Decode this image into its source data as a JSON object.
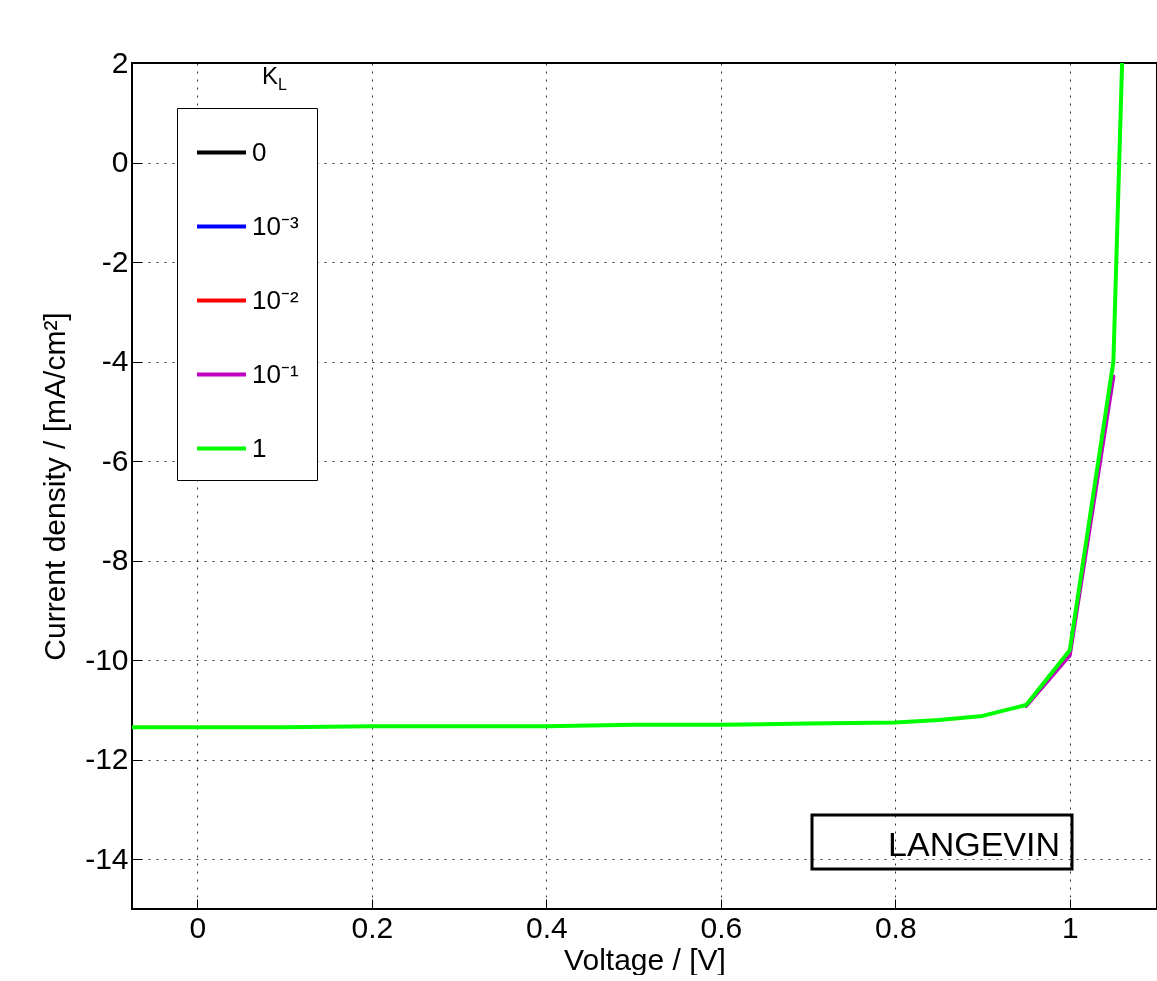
{
  "chart_data": {
    "type": "line",
    "xlabel": "Voltage / [V]",
    "ylabel": "Current density / [mA/cm²]",
    "legend_title": "K$_{L}$",
    "annotations": [
      "LANGEVIN"
    ],
    "x": [
      -0.075,
      0.1,
      0.2,
      0.4,
      0.5,
      0.6,
      0.7,
      0.8,
      0.85,
      0.9,
      0.95,
      1.0,
      1.05,
      1.06
    ],
    "series": [
      {
        "name": "0",
        "color": "#000000",
        "values": [
          null,
          null,
          null,
          null,
          null,
          null,
          null,
          null,
          null,
          null,
          null,
          null,
          null,
          null
        ]
      },
      {
        "name": "10⁻³",
        "color": "#0000ff",
        "values": [
          null,
          null,
          null,
          null,
          null,
          null,
          null,
          null,
          null,
          null,
          null,
          null,
          null,
          null
        ]
      },
      {
        "name": "10⁻²",
        "color": "#ff0000",
        "values": [
          null,
          null,
          null,
          null,
          null,
          null,
          null,
          null,
          null,
          null,
          null,
          null,
          null,
          null
        ]
      },
      {
        "name": "10⁻¹",
        "color": "#c000c0",
        "values": [
          null,
          null,
          null,
          null,
          null,
          null,
          null,
          null,
          null,
          null,
          -10.92,
          -9.9,
          -4.3,
          null
        ]
      },
      {
        "name": "1",
        "color": "#00ff00",
        "values": [
          -11.35,
          -11.35,
          -11.33,
          -11.33,
          -11.3,
          -11.3,
          -11.27,
          -11.25,
          -11.2,
          -11.12,
          -10.9,
          -9.8,
          -4.0,
          2
        ]
      }
    ],
    "xlim": [
      -0.075,
      1.1
    ],
    "xticks": [
      0,
      0.2,
      0.4,
      0.6,
      0.8,
      1
    ],
    "ylim": [
      -15,
      2
    ],
    "yticks": [
      -14,
      -12,
      -10,
      -8,
      -6,
      -4,
      -2,
      0,
      2
    ],
    "grid": true,
    "legend": "top left",
    "line_style": "solid",
    "marker": "none"
  }
}
